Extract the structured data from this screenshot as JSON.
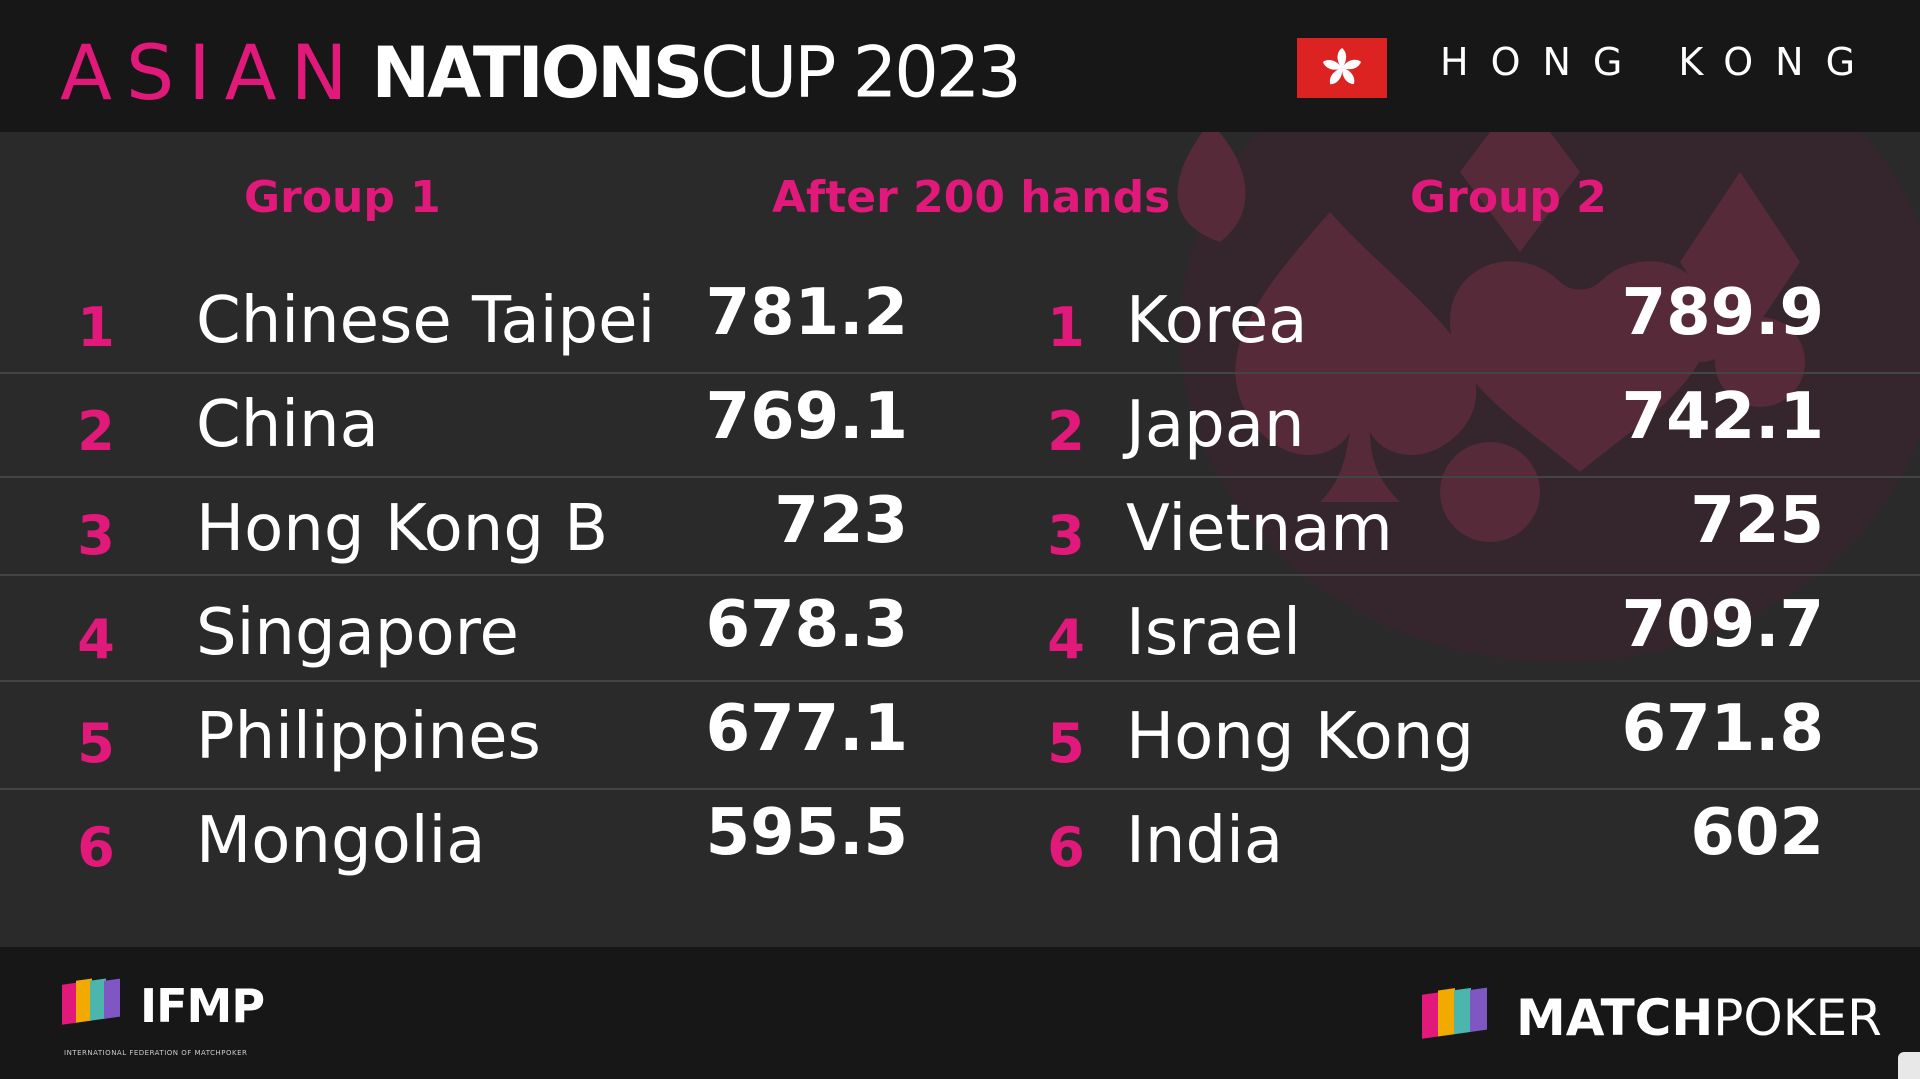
{
  "header": {
    "title_part1": "ASIAN",
    "title_part2": "NATIONS",
    "title_part3": "CUP 2023",
    "location": "HONG KONG",
    "flag_icon": "hong-kong-flag-icon"
  },
  "standings": {
    "group1_label": "Group 1",
    "middle_label": "After 200 hands",
    "group2_label": "Group 2",
    "group1": [
      {
        "rank": "1",
        "team": "Chinese Taipei",
        "score": "781.2"
      },
      {
        "rank": "2",
        "team": "China",
        "score": "769.1"
      },
      {
        "rank": "3",
        "team": "Hong Kong B",
        "score": "723"
      },
      {
        "rank": "4",
        "team": "Singapore",
        "score": "678.3"
      },
      {
        "rank": "5",
        "team": "Philippines",
        "score": "677.1"
      },
      {
        "rank": "6",
        "team": "Mongolia",
        "score": "595.5"
      }
    ],
    "group2": [
      {
        "rank": "1",
        "team": "Korea",
        "score": "789.9"
      },
      {
        "rank": "2",
        "team": "Japan",
        "score": "742.1"
      },
      {
        "rank": "3",
        "team": "Vietnam",
        "score": "725"
      },
      {
        "rank": "4",
        "team": "Israel",
        "score": "709.7"
      },
      {
        "rank": "5",
        "team": "Hong Kong",
        "score": "671.8"
      },
      {
        "rank": "6",
        "team": "India",
        "score": "602"
      }
    ]
  },
  "footer": {
    "ifmp_name": "IFMP",
    "ifmp_subtitle": "INTERNATIONAL FEDERATION OF MATCHPOKER",
    "matchpoker_part1": "MATCH",
    "matchpoker_part2": "POKER"
  },
  "colors": {
    "accent": "#e0197a",
    "header_bg": "#171717",
    "panel_bg": "#2a2a2a",
    "flag_red": "#dd2222"
  }
}
